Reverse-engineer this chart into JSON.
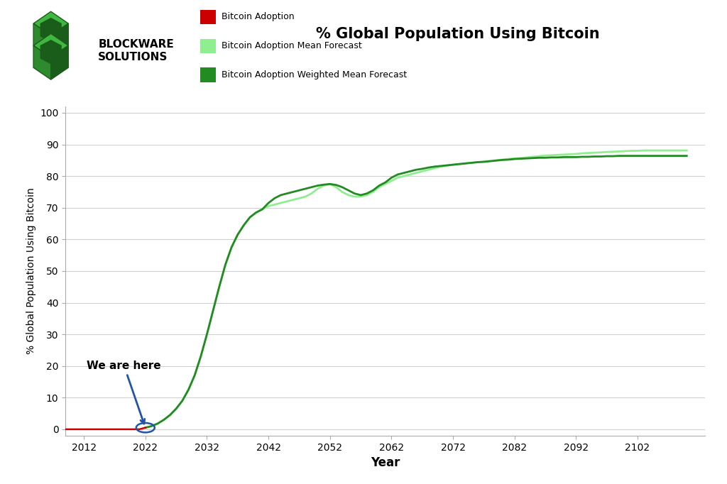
{
  "title": "% Global Population Using Bitcoin",
  "xlabel": "Year",
  "ylabel": "% Global Population Using Bitcoin",
  "background_color": "#ffffff",
  "grid_color": "#d0d0d0",
  "xlim": [
    2009,
    2113
  ],
  "ylim": [
    -2,
    102
  ],
  "yticks": [
    0,
    10,
    20,
    30,
    40,
    50,
    60,
    70,
    80,
    90,
    100
  ],
  "xticks": [
    2012,
    2022,
    2032,
    2042,
    2052,
    2062,
    2072,
    2082,
    2092,
    2102
  ],
  "legend_labels": [
    "Bitcoin Adoption",
    "Bitcoin Adoption Mean Forecast",
    "Bitcoin Adoption Weighted Mean Forecast"
  ],
  "legend_colors": [
    "#cc0000",
    "#90ee90",
    "#228b22"
  ],
  "line_adoption_color": "#cc0000",
  "line_mean_color": "#90ee90",
  "line_weighted_color": "#228b22",
  "annotation_text": "We are here",
  "years_adoption": [
    2009,
    2010,
    2011,
    2012,
    2013,
    2014,
    2015,
    2016,
    2017,
    2018,
    2019,
    2020,
    2021,
    2022
  ],
  "values_adoption": [
    0.0,
    0.0,
    0.0,
    0.0,
    0.0,
    0.0,
    0.0,
    0.0,
    0.0,
    0.0,
    0.0,
    0.0,
    0.0,
    0.5
  ],
  "years_forecast": [
    2022,
    2023,
    2024,
    2025,
    2026,
    2027,
    2028,
    2029,
    2030,
    2031,
    2032,
    2033,
    2034,
    2035,
    2036,
    2037,
    2038,
    2039,
    2040,
    2041,
    2042,
    2043,
    2044,
    2045,
    2046,
    2047,
    2048,
    2049,
    2050,
    2051,
    2052,
    2053,
    2054,
    2055,
    2056,
    2057,
    2058,
    2059,
    2060,
    2061,
    2062,
    2063,
    2064,
    2065,
    2066,
    2067,
    2068,
    2069,
    2070,
    2071,
    2072,
    2073,
    2074,
    2075,
    2076,
    2077,
    2078,
    2079,
    2080,
    2081,
    2082,
    2083,
    2084,
    2085,
    2086,
    2087,
    2088,
    2089,
    2090,
    2091,
    2092,
    2093,
    2094,
    2095,
    2096,
    2097,
    2098,
    2099,
    2100,
    2101,
    2102,
    2103,
    2104,
    2105,
    2106,
    2107,
    2108,
    2109,
    2110
  ],
  "values_mean": [
    0.5,
    1.0,
    1.8,
    3.0,
    4.5,
    6.5,
    9.0,
    12.5,
    17.0,
    23.0,
    30.0,
    37.5,
    45.0,
    52.0,
    57.5,
    61.5,
    64.5,
    67.0,
    68.5,
    69.5,
    70.5,
    71.0,
    71.5,
    72.0,
    72.5,
    73.0,
    73.5,
    74.5,
    76.0,
    77.0,
    77.5,
    76.5,
    75.0,
    74.0,
    73.5,
    73.5,
    74.0,
    75.0,
    76.5,
    77.5,
    78.5,
    79.5,
    80.0,
    80.5,
    81.0,
    81.5,
    82.0,
    82.5,
    83.0,
    83.3,
    83.6,
    83.8,
    84.0,
    84.2,
    84.4,
    84.6,
    84.8,
    85.0,
    85.2,
    85.4,
    85.6,
    85.7,
    85.9,
    86.1,
    86.3,
    86.5,
    86.6,
    86.7,
    86.8,
    86.9,
    87.0,
    87.2,
    87.3,
    87.4,
    87.5,
    87.6,
    87.7,
    87.8,
    87.9,
    88.0,
    88.0,
    88.1,
    88.1,
    88.1,
    88.1,
    88.1,
    88.1,
    88.1,
    88.1
  ],
  "values_weighted": [
    0.5,
    1.0,
    1.8,
    3.0,
    4.5,
    6.5,
    9.0,
    12.5,
    17.0,
    23.0,
    30.0,
    37.5,
    45.0,
    52.0,
    57.5,
    61.5,
    64.5,
    67.0,
    68.5,
    69.5,
    71.5,
    73.0,
    74.0,
    74.5,
    75.0,
    75.5,
    76.0,
    76.5,
    77.0,
    77.3,
    77.5,
    77.2,
    76.5,
    75.5,
    74.5,
    74.0,
    74.5,
    75.5,
    77.0,
    78.0,
    79.5,
    80.5,
    81.0,
    81.5,
    82.0,
    82.3,
    82.7,
    83.0,
    83.2,
    83.4,
    83.6,
    83.8,
    84.0,
    84.2,
    84.4,
    84.5,
    84.7,
    84.9,
    85.1,
    85.2,
    85.4,
    85.5,
    85.6,
    85.7,
    85.8,
    85.8,
    85.9,
    85.9,
    86.0,
    86.0,
    86.0,
    86.1,
    86.1,
    86.2,
    86.2,
    86.3,
    86.3,
    86.4,
    86.4,
    86.4,
    86.4,
    86.4,
    86.4,
    86.4,
    86.4,
    86.4,
    86.4,
    86.4,
    86.4
  ]
}
